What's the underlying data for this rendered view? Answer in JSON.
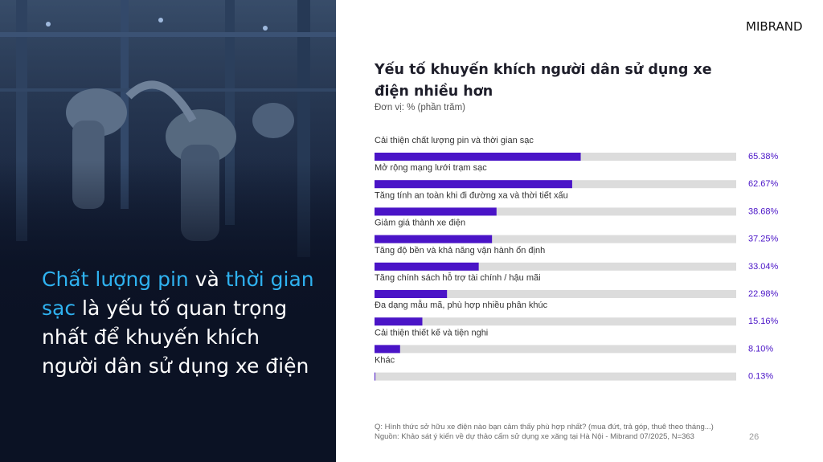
{
  "brand": {
    "name": "MIBRAND"
  },
  "headline": {
    "part1": "Chất lượng pin",
    "part2": " và ",
    "part3": "thời gian sạc",
    "part4": " là yếu tố quan trọng nhất để khuyến khích người dân sử dụng xe điện"
  },
  "colors": {
    "bar_fill": "#4a14c7",
    "bar_track": "#dcdcdc",
    "value_text": "#4a14c7",
    "headline_accent": "#2fb2f0"
  },
  "chart_data": {
    "type": "bar",
    "orientation": "horizontal",
    "title": "Yếu tố khuyến khích người dân sử dụng xe điện nhiều hơn",
    "unit": "Đơn vị: % (phần trăm)",
    "xlim": [
      0,
      100
    ],
    "categories": [
      "Cải thiện chất lượng pin và thời gian sạc",
      "Mở rộng mạng lưới trạm sạc",
      "Tăng tính an toàn khi đi đường xa và thời tiết xấu",
      "Giảm giá thành xe điện",
      "Tăng độ bền và khả năng vận hành ổn định",
      "Tăng chính sách hỗ trợ tài chính / hậu mãi",
      "Đa dạng mẫu mã, phù hợp nhiều phân khúc",
      "Cải thiện thiết kế và tiện nghi",
      "Khác"
    ],
    "values": [
      65.38,
      62.67,
      38.68,
      37.25,
      33.04,
      22.98,
      15.16,
      8.1,
      0.13
    ],
    "value_labels": [
      "65.38%",
      "62.67%",
      "38.68%",
      "37.25%",
      "33.04%",
      "22.98%",
      "15.16%",
      "8.10%",
      "0.13%"
    ]
  },
  "footnote": {
    "question": "Q: Hình thức sở hữu xe điện nào bạn cảm thấy phù hợp nhất? (mua đứt, trả góp, thuê theo tháng...)",
    "source": "Nguồn: Khảo sát ý kiến về dự thảo cấm sử dụng xe xăng tại Hà Nội - Mibrand 07/2025, N=363"
  },
  "page_number": "26"
}
